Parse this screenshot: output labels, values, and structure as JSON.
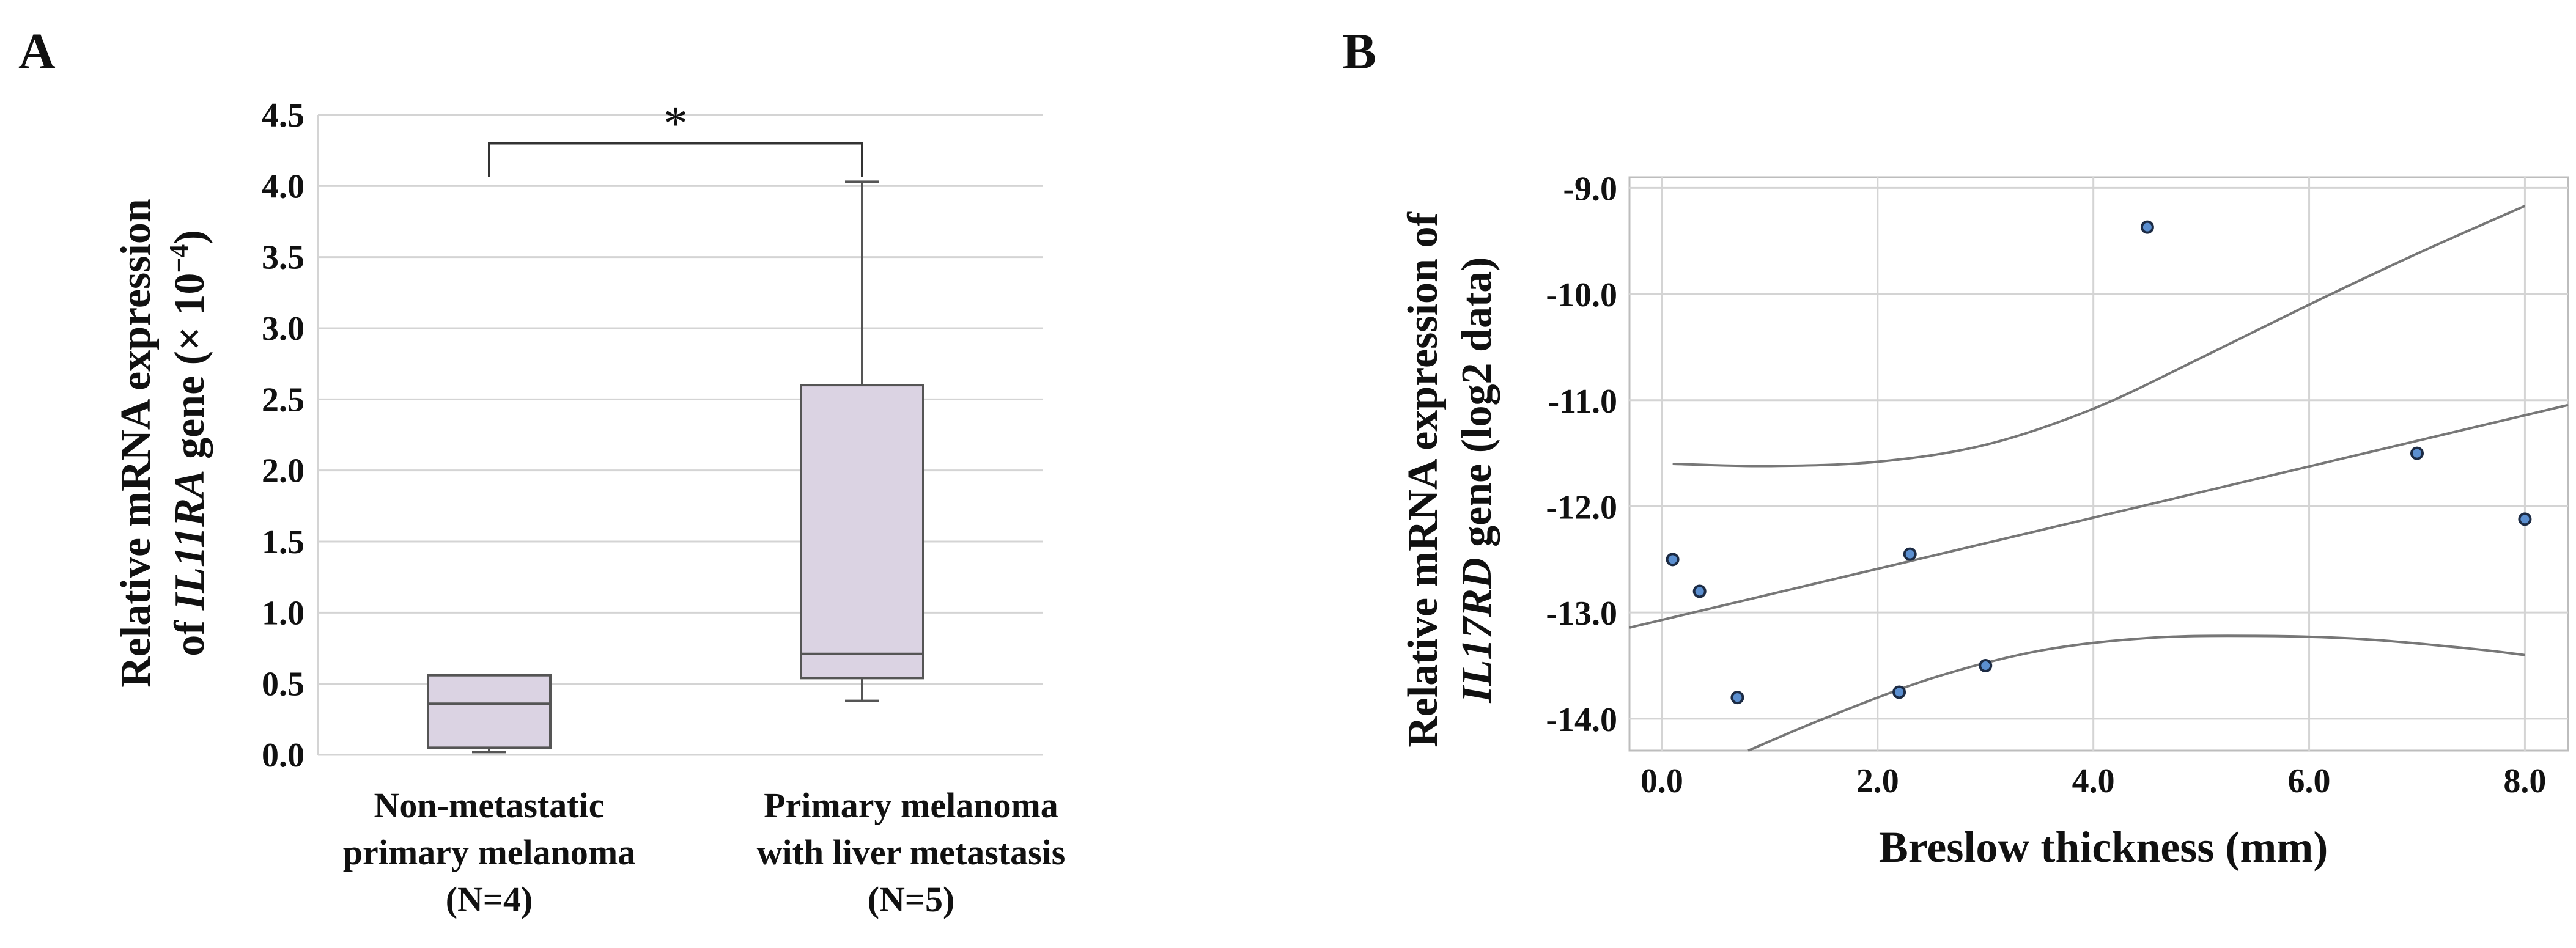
{
  "panels": {
    "a": {
      "letter": "A"
    },
    "b": {
      "letter": "B"
    }
  },
  "colors": {
    "box_fill": "#dbd3e3",
    "box_stroke": "#555555",
    "grid": "#d4d4d4",
    "axis_text": "#111111",
    "point_fill": "#5b8fd0",
    "point_stroke": "#1c2b44",
    "line": "#777777"
  },
  "chart_data": [
    {
      "type": "box",
      "title": "",
      "ylabel_parts": [
        "Relative mRNA expression",
        "of ",
        "IL11RA",
        " gene (× 10",
        "−4",
        ")"
      ],
      "ylim": [
        0,
        4.5
      ],
      "yticks": [
        0.0,
        0.5,
        1.0,
        1.5,
        2.0,
        2.5,
        3.0,
        3.5,
        4.0,
        4.5
      ],
      "ytick_labels": [
        "0.0",
        "0.5",
        "1.0",
        "1.5",
        "2.0",
        "2.5",
        "3.0",
        "3.5",
        "4.0",
        "4.5"
      ],
      "grid": true,
      "categories": [
        [
          "Non-metastatic",
          "primary melanoma",
          "(N=4)"
        ],
        [
          "Primary melanoma",
          "with liver metastasis",
          "(N=5)"
        ]
      ],
      "boxes": [
        {
          "min": 0.02,
          "q1": 0.05,
          "median": 0.36,
          "q3": 0.56,
          "max": 0.56
        },
        {
          "min": 0.38,
          "q1": 0.54,
          "median": 0.71,
          "q3": 2.6,
          "max": 4.03
        }
      ],
      "significance": {
        "label": "*",
        "between": [
          0,
          1
        ],
        "y": 4.3
      }
    },
    {
      "type": "scatter",
      "title": "",
      "xlabel": "Breslow thickness (mm)",
      "ylabel_parts": [
        "Relative mRNA expression of",
        "IL17RD",
        " gene (log2 data)"
      ],
      "xlim": [
        -0.3,
        8.4
      ],
      "ylim": [
        -14.3,
        -8.9
      ],
      "xticks": [
        0.0,
        2.0,
        4.0,
        6.0,
        8.0
      ],
      "xtick_labels": [
        "0.0",
        "2.0",
        "4.0",
        "6.0",
        "8.0"
      ],
      "yticks": [
        -9.0,
        -10.0,
        -11.0,
        -12.0,
        -13.0,
        -14.0
      ],
      "ytick_labels": [
        "-9.0",
        "-10.0",
        "-11.0",
        "-12.0",
        "-13.0",
        "-14.0"
      ],
      "grid": true,
      "points": [
        {
          "x": 0.1,
          "y": -12.5
        },
        {
          "x": 0.35,
          "y": -12.8
        },
        {
          "x": 0.7,
          "y": -13.8
        },
        {
          "x": 2.2,
          "y": -13.75
        },
        {
          "x": 2.3,
          "y": -12.45
        },
        {
          "x": 3.0,
          "y": -13.5
        },
        {
          "x": 4.5,
          "y": -9.37
        },
        {
          "x": 7.0,
          "y": -11.5
        },
        {
          "x": 8.0,
          "y": -12.12
        }
      ],
      "regression": {
        "slope": 0.241,
        "intercept": -13.07,
        "x_range": [
          -0.3,
          8.4
        ]
      },
      "upper_ci": [
        [
          0.1,
          -11.6
        ],
        [
          1.0,
          -11.62
        ],
        [
          2.0,
          -11.58
        ],
        [
          3.0,
          -11.42
        ],
        [
          4.0,
          -11.08
        ],
        [
          5.0,
          -10.6
        ],
        [
          6.0,
          -10.1
        ],
        [
          7.0,
          -9.62
        ],
        [
          8.0,
          -9.17
        ]
      ],
      "lower_ci": [
        [
          0.8,
          -14.3
        ],
        [
          1.5,
          -14.0
        ],
        [
          2.5,
          -13.62
        ],
        [
          3.5,
          -13.36
        ],
        [
          4.5,
          -13.24
        ],
        [
          5.5,
          -13.22
        ],
        [
          6.5,
          -13.25
        ],
        [
          7.5,
          -13.34
        ],
        [
          8.0,
          -13.4
        ]
      ]
    }
  ]
}
